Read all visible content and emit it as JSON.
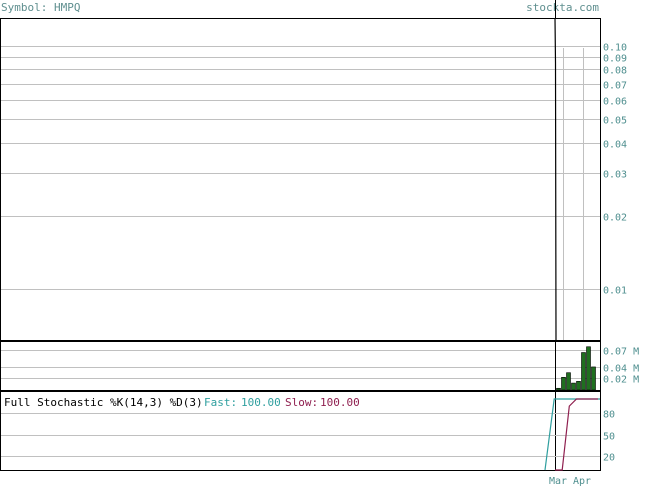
{
  "header": {
    "symbol_text": "Symbol: HMPQ",
    "site": "stockta.com"
  },
  "colors": {
    "header_text": "#5f8f8f",
    "axis_text": "#4f8f8f",
    "frame": "#000000",
    "grid": "#c0c0c0",
    "volume_bar": "#1f6f1f",
    "fast_line": "#2f9f9f",
    "slow_line": "#8f1f4f",
    "title_text": "#000000"
  },
  "chart_data": [
    {
      "type": "line",
      "panel": "price",
      "yscale": "log",
      "ylim": [
        0.0062,
        0.13
      ],
      "yticks": [
        0.1,
        0.09,
        0.08,
        0.07,
        0.06,
        0.05,
        0.04,
        0.03,
        0.02,
        0.01
      ],
      "ytick_labels": [
        "0.10",
        "0.09",
        "0.08",
        "0.07",
        "0.06",
        "0.05",
        "0.04",
        "0.03",
        "0.02",
        "0.01"
      ],
      "x_labels": [
        "Mar",
        "Apr"
      ],
      "series": [
        {
          "values": [
            0.13,
            0.085,
            0.0062
          ]
        }
      ]
    },
    {
      "type": "bar",
      "panel": "volume",
      "ylim": [
        0,
        0.085
      ],
      "yticks": [
        0.07,
        0.04,
        0.02
      ],
      "ytick_labels": [
        "0.07 M",
        "0.04 M",
        "0.02 M"
      ],
      "values": [
        0.003,
        0.022,
        0.03,
        0.012,
        0.015,
        0.065,
        0.075,
        0.04
      ]
    },
    {
      "type": "line",
      "panel": "stochastic",
      "title": "Full Stochastic %K(14,3) %D(3)",
      "fast_label": "Fast:",
      "fast_value": "100.00",
      "slow_label": "Slow:",
      "slow_value": "100.00",
      "ylim": [
        0,
        100
      ],
      "yticks": [
        80,
        50,
        20
      ],
      "ytick_labels": [
        "80",
        "50",
        "20"
      ],
      "series": [
        {
          "values": [
            0,
            100,
            100,
            100,
            100,
            100,
            100
          ]
        },
        {
          "values": [
            0,
            0,
            90,
            100,
            100,
            100,
            100
          ]
        }
      ]
    }
  ]
}
